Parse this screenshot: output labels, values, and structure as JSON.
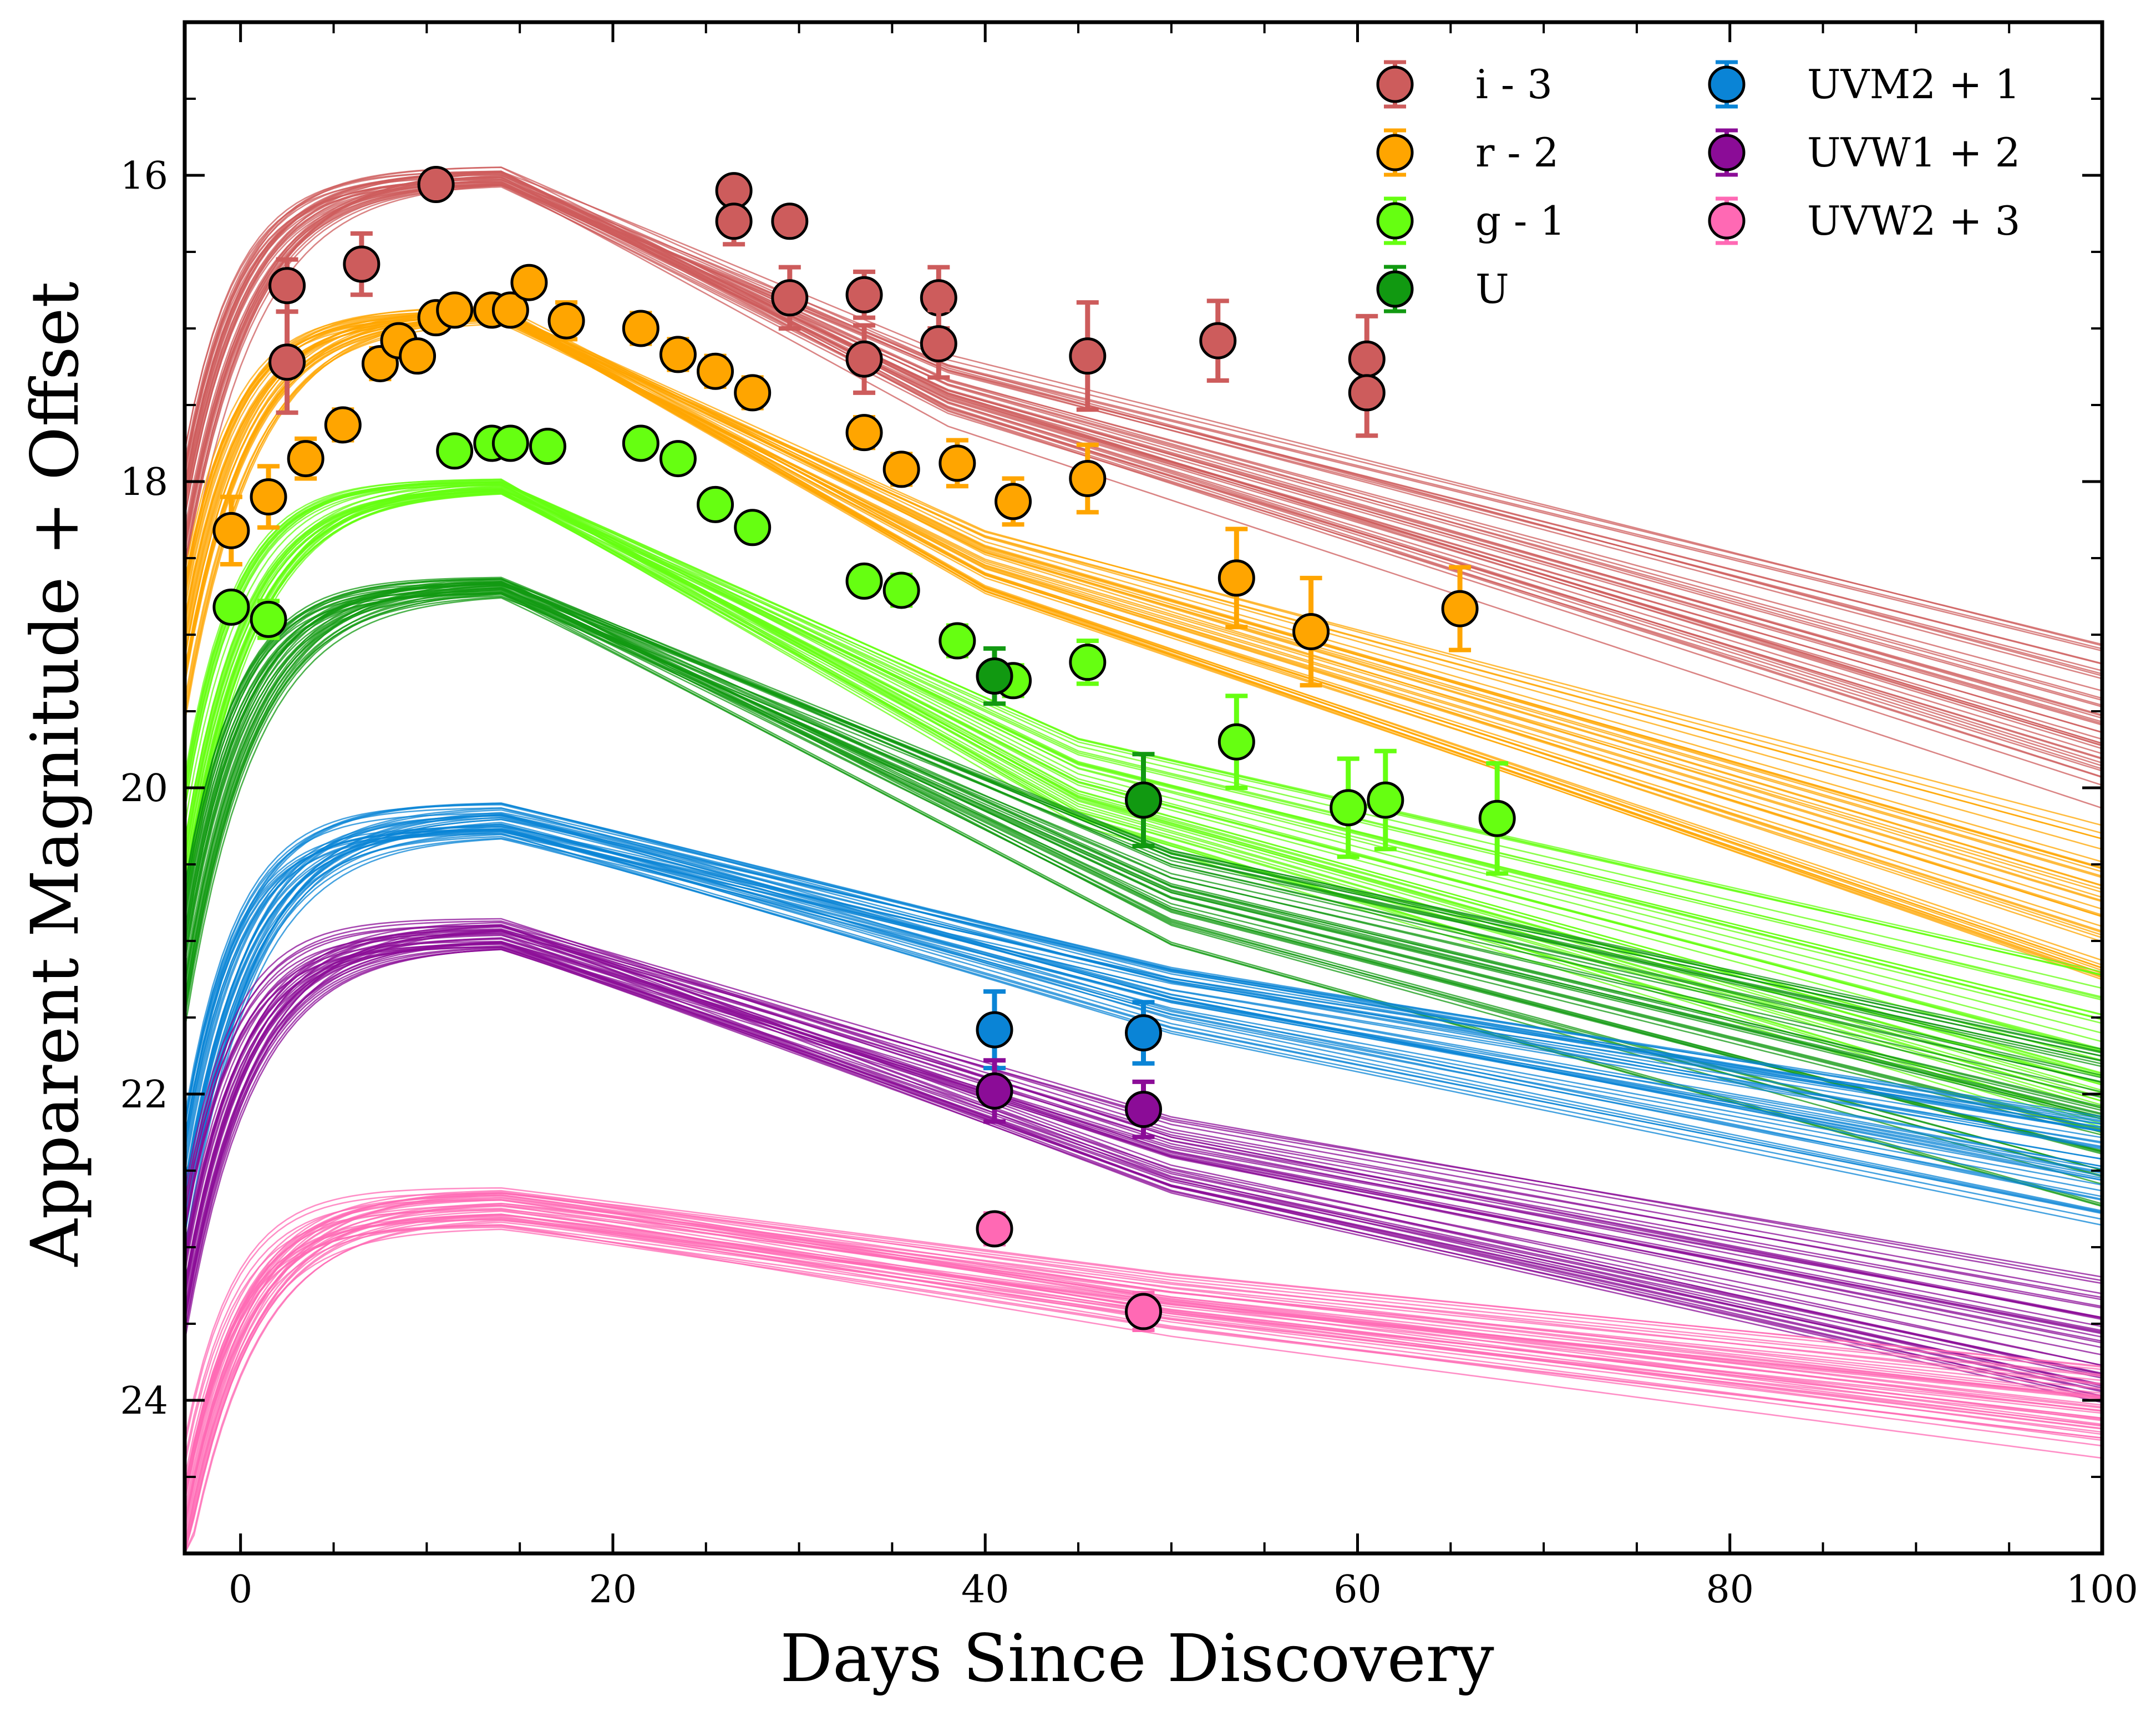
{
  "chart_data": {
    "type": "scatter",
    "title": "",
    "xlabel": "Days Since Discovery",
    "ylabel": "Apparent Magnitude + Offset",
    "xlim": [
      -3,
      100
    ],
    "ylim": [
      25,
      15
    ],
    "y_inverted": true,
    "x_ticks": [
      0,
      20,
      40,
      60,
      80,
      100
    ],
    "y_ticks": [
      16,
      18,
      20,
      22,
      24
    ],
    "grid": false,
    "legend_position": "top-right",
    "legend_columns": 2,
    "series": [
      {
        "name": "i - 3",
        "color": "#cd5c5c",
        "points": [
          {
            "x": 2.5,
            "y": 16.72,
            "err": 0.17
          },
          {
            "x": 2.5,
            "y": 17.22,
            "err": 0.33
          },
          {
            "x": 6.5,
            "y": 16.58,
            "err": 0.2
          },
          {
            "x": 10.5,
            "y": 16.06,
            "err": 0.07
          },
          {
            "x": 26.5,
            "y": 16.1,
            "err": 0.08
          },
          {
            "x": 26.5,
            "y": 16.3,
            "err": 0.15
          },
          {
            "x": 29.5,
            "y": 16.3,
            "err": 0.06
          },
          {
            "x": 29.5,
            "y": 16.8,
            "err": 0.2
          },
          {
            "x": 33.5,
            "y": 16.78,
            "err": 0.15
          },
          {
            "x": 33.5,
            "y": 17.2,
            "err": 0.22
          },
          {
            "x": 37.5,
            "y": 16.8,
            "err": 0.2
          },
          {
            "x": 37.5,
            "y": 17.1,
            "err": 0.22
          },
          {
            "x": 45.5,
            "y": 17.18,
            "err": 0.35
          },
          {
            "x": 52.5,
            "y": 17.08,
            "err": 0.26
          },
          {
            "x": 60.5,
            "y": 17.2,
            "err": 0.28
          },
          {
            "x": 60.5,
            "y": 17.42,
            "err": 0.28
          }
        ],
        "model": {
          "peak": 16.0,
          "rise": 3.0,
          "t0": -4.0,
          "fall1": 0.058,
          "tb": 38,
          "fall2": 0.035,
          "spread": 0.12,
          "n": 40
        }
      },
      {
        "name": "r - 2",
        "color": "#ffa500",
        "points": [
          {
            "x": -0.5,
            "y": 18.32,
            "err": 0.22
          },
          {
            "x": 1.5,
            "y": 18.1,
            "err": 0.2
          },
          {
            "x": 3.5,
            "y": 17.85,
            "err": 0.13
          },
          {
            "x": 5.5,
            "y": 17.63,
            "err": 0.1
          },
          {
            "x": 7.5,
            "y": 17.23,
            "err": 0.1
          },
          {
            "x": 8.5,
            "y": 17.08,
            "err": 0.1
          },
          {
            "x": 9.5,
            "y": 17.18,
            "err": 0.08
          },
          {
            "x": 10.5,
            "y": 16.93,
            "err": 0.08
          },
          {
            "x": 11.5,
            "y": 16.88,
            "err": 0.08
          },
          {
            "x": 13.5,
            "y": 16.88,
            "err": 0.08
          },
          {
            "x": 14.5,
            "y": 16.88,
            "err": 0.08
          },
          {
            "x": 15.5,
            "y": 16.7,
            "err": 0.08
          },
          {
            "x": 17.5,
            "y": 16.95,
            "err": 0.12
          },
          {
            "x": 21.5,
            "y": 17.0,
            "err": 0.1
          },
          {
            "x": 23.5,
            "y": 17.17,
            "err": 0.1
          },
          {
            "x": 25.5,
            "y": 17.28,
            "err": 0.1
          },
          {
            "x": 27.5,
            "y": 17.42,
            "err": 0.1
          },
          {
            "x": 33.5,
            "y": 17.68,
            "err": 0.1
          },
          {
            "x": 35.5,
            "y": 17.92,
            "err": 0.1
          },
          {
            "x": 38.5,
            "y": 17.88,
            "err": 0.15
          },
          {
            "x": 41.5,
            "y": 18.13,
            "err": 0.15
          },
          {
            "x": 45.5,
            "y": 17.98,
            "err": 0.22
          },
          {
            "x": 53.5,
            "y": 18.63,
            "err": 0.32
          },
          {
            "x": 57.5,
            "y": 18.98,
            "err": 0.35
          },
          {
            "x": 65.5,
            "y": 18.83,
            "err": 0.27
          }
        ],
        "model": {
          "peak": 16.9,
          "rise": 3.0,
          "t0": -4.0,
          "fall1": 0.062,
          "tb": 40,
          "fall2": 0.037,
          "spread": 0.1,
          "n": 40
        }
      },
      {
        "name": "g - 1",
        "color": "#66ff11",
        "points": [
          {
            "x": -0.5,
            "y": 18.82,
            "err": 0.08
          },
          {
            "x": 1.5,
            "y": 18.9,
            "err": 0.12
          },
          {
            "x": 11.5,
            "y": 17.8,
            "err": 0.06
          },
          {
            "x": 13.5,
            "y": 17.75,
            "err": 0.06
          },
          {
            "x": 14.5,
            "y": 17.75,
            "err": 0.06
          },
          {
            "x": 16.5,
            "y": 17.77,
            "err": 0.06
          },
          {
            "x": 21.5,
            "y": 17.75,
            "err": 0.06
          },
          {
            "x": 23.5,
            "y": 17.85,
            "err": 0.06
          },
          {
            "x": 25.5,
            "y": 18.15,
            "err": 0.06
          },
          {
            "x": 27.5,
            "y": 18.3,
            "err": 0.08
          },
          {
            "x": 33.5,
            "y": 18.65,
            "err": 0.08
          },
          {
            "x": 35.5,
            "y": 18.71,
            "err": 0.1
          },
          {
            "x": 38.5,
            "y": 19.04,
            "err": 0.1
          },
          {
            "x": 41.5,
            "y": 19.3,
            "err": 0.1
          },
          {
            "x": 45.5,
            "y": 19.18,
            "err": 0.14
          },
          {
            "x": 53.5,
            "y": 19.7,
            "err": 0.3
          },
          {
            "x": 59.5,
            "y": 20.13,
            "err": 0.32
          },
          {
            "x": 61.5,
            "y": 20.08,
            "err": 0.32
          },
          {
            "x": 67.5,
            "y": 20.2,
            "err": 0.36
          }
        ],
        "model": {
          "peak": 18.02,
          "rise": 2.8,
          "t0": -3.5,
          "fall1": 0.062,
          "tb": 45,
          "fall2": 0.032,
          "spread": 0.08,
          "n": 40
        }
      },
      {
        "name": "U",
        "color": "#119911",
        "points": [
          {
            "x": 40.5,
            "y": 19.27,
            "err": 0.18
          },
          {
            "x": 48.5,
            "y": 20.08,
            "err": 0.3
          }
        ],
        "model": {
          "peak": 18.68,
          "rise": 2.8,
          "t0": -3.5,
          "fall1": 0.056,
          "tb": 50,
          "fall2": 0.03,
          "spread": 0.12,
          "n": 40
        }
      },
      {
        "name": "UVM2 + 1",
        "color": "#0a84d6",
        "points": [
          {
            "x": 40.5,
            "y": 21.58,
            "err": 0.25
          },
          {
            "x": 48.5,
            "y": 21.6,
            "err": 0.2
          }
        ],
        "model": {
          "peak": 20.2,
          "rise": 2.6,
          "t0": -3.3,
          "fall1": 0.032,
          "tb": 50,
          "fall2": 0.022,
          "spread": 0.22,
          "n": 40
        }
      },
      {
        "name": "UVW1 + 2",
        "color": "#8b0c97",
        "points": [
          {
            "x": 40.5,
            "y": 21.98,
            "err": 0.2
          },
          {
            "x": 48.5,
            "y": 22.1,
            "err": 0.18
          }
        ],
        "model": {
          "peak": 20.95,
          "rise": 2.6,
          "t0": -3.5,
          "fall1": 0.04,
          "tb": 50,
          "fall2": 0.024,
          "spread": 0.2,
          "n": 40
        }
      },
      {
        "name": "UVW2 + 3",
        "color": "#ff69b4",
        "points": [
          {
            "x": 40.5,
            "y": 22.88,
            "err": 0.1
          },
          {
            "x": 48.5,
            "y": 23.42,
            "err": 0.12
          }
        ],
        "model": {
          "peak": 22.75,
          "rise": 2.4,
          "t0": -3.5,
          "fall1": 0.018,
          "tb": 50,
          "fall2": 0.014,
          "spread": 0.28,
          "n": 40
        }
      }
    ]
  }
}
